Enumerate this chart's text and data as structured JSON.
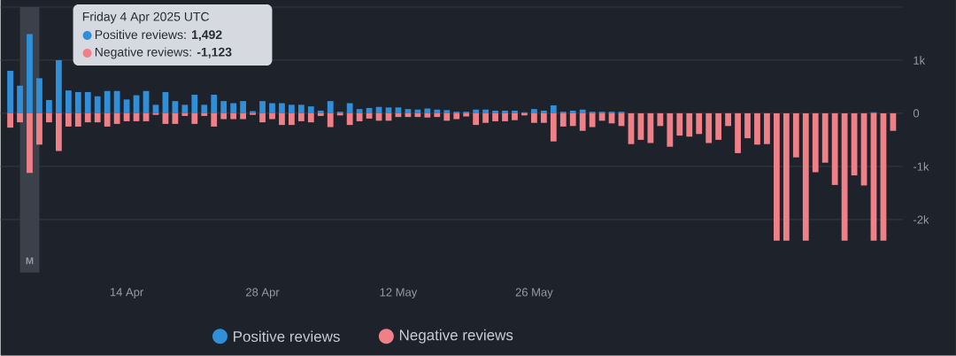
{
  "chart_data": {
    "type": "bar",
    "x": [
      "2025-04-02",
      "2025-04-03",
      "2025-04-04",
      "2025-04-05",
      "2025-04-06",
      "2025-04-07",
      "2025-04-08",
      "2025-04-09",
      "2025-04-10",
      "2025-04-11",
      "2025-04-12",
      "2025-04-13",
      "2025-04-14",
      "2025-04-15",
      "2025-04-16",
      "2025-04-17",
      "2025-04-18",
      "2025-04-19",
      "2025-04-20",
      "2025-04-21",
      "2025-04-22",
      "2025-04-23",
      "2025-04-24",
      "2025-04-25",
      "2025-04-26",
      "2025-04-27",
      "2025-04-28",
      "2025-04-29",
      "2025-04-30",
      "2025-05-01",
      "2025-05-02",
      "2025-05-03",
      "2025-05-04",
      "2025-05-05",
      "2025-05-06",
      "2025-05-07",
      "2025-05-08",
      "2025-05-09",
      "2025-05-10",
      "2025-05-11",
      "2025-05-12",
      "2025-05-13",
      "2025-05-14",
      "2025-05-15",
      "2025-05-16",
      "2025-05-17",
      "2025-05-18",
      "2025-05-19",
      "2025-05-20",
      "2025-05-21",
      "2025-05-22",
      "2025-05-23",
      "2025-05-24",
      "2025-05-25",
      "2025-05-26",
      "2025-05-27",
      "2025-05-28",
      "2025-05-29",
      "2025-05-30",
      "2025-05-31",
      "2025-06-01",
      "2025-06-02",
      "2025-06-03",
      "2025-06-04",
      "2025-06-05",
      "2025-06-06",
      "2025-06-07",
      "2025-06-08",
      "2025-06-09",
      "2025-06-10",
      "2025-06-11",
      "2025-06-12",
      "2025-06-13",
      "2025-06-14",
      "2025-06-15",
      "2025-06-16",
      "2025-06-17",
      "2025-06-18",
      "2025-06-19",
      "2025-06-20",
      "2025-06-21",
      "2025-06-22",
      "2025-06-23",
      "2025-06-24",
      "2025-06-25",
      "2025-06-26",
      "2025-06-27",
      "2025-06-28",
      "2025-06-29",
      "2025-06-30",
      "2025-07-01",
      "2025-07-02"
    ],
    "series": [
      {
        "name": "Positive reviews",
        "color": "#2f8fd8",
        "values": [
          800,
          520,
          1492,
          660,
          250,
          1000,
          430,
          400,
          400,
          320,
          420,
          420,
          260,
          340,
          420,
          160,
          400,
          230,
          160,
          350,
          160,
          350,
          230,
          190,
          230,
          40,
          230,
          190,
          190,
          160,
          160,
          130,
          50,
          230,
          30,
          190,
          80,
          100,
          120,
          110,
          110,
          80,
          70,
          90,
          70,
          60,
          30,
          30,
          70,
          70,
          50,
          50,
          50,
          20,
          80,
          50,
          150,
          30,
          50,
          70,
          30,
          30,
          30,
          30,
          0,
          0,
          0,
          0,
          0,
          0,
          0,
          0,
          0,
          0,
          0,
          0,
          0,
          0,
          0,
          0,
          0,
          0,
          0,
          0,
          0,
          0,
          0,
          0,
          0,
          20,
          0,
          0
        ]
      },
      {
        "name": "Negative reviews",
        "color": "#f08088",
        "values": [
          -270,
          -170,
          -1123,
          -590,
          -170,
          -710,
          -250,
          -250,
          -170,
          -170,
          -250,
          -200,
          -150,
          -150,
          -150,
          -30,
          -200,
          -200,
          -50,
          -200,
          -50,
          -250,
          -110,
          -110,
          -110,
          -30,
          -170,
          -110,
          -220,
          -220,
          -150,
          -170,
          -50,
          -260,
          -40,
          -220,
          -150,
          -100,
          -140,
          -140,
          -70,
          -70,
          -70,
          -80,
          -70,
          -140,
          -110,
          -60,
          -220,
          -180,
          -150,
          -150,
          -130,
          -40,
          -180,
          -180,
          -530,
          -250,
          -240,
          -330,
          -260,
          -140,
          -190,
          -240,
          -580,
          -500,
          -560,
          -240,
          -630,
          -420,
          -440,
          -390,
          -560,
          -500,
          -240,
          -750,
          -470,
          -590,
          -580,
          -2400,
          -2400,
          -830,
          -2400,
          -1110,
          -930,
          -1350,
          -2400,
          -1170,
          -1360,
          -2400,
          -2400,
          -330
        ]
      }
    ],
    "xlim": [
      "2025-04-01",
      "2025-07-03"
    ],
    "xticks": [
      {
        "value": "2025-04-14",
        "label": "14 Apr"
      },
      {
        "value": "2025-04-28",
        "label": "28 Apr"
      },
      {
        "value": "2025-05-12",
        "label": "12 May"
      },
      {
        "value": "2025-05-26",
        "label": "26 May"
      }
    ],
    "ylim": [
      -3000,
      2000
    ],
    "yticks": [
      {
        "value": 2000,
        "label": null
      },
      {
        "value": 1000,
        "label": "1k"
      },
      {
        "value": 0,
        "label": "0"
      },
      {
        "value": -1000,
        "label": "-1k"
      },
      {
        "value": -2000,
        "label": "-2k"
      }
    ],
    "grid": "y",
    "stacked": true,
    "legend": "bottom",
    "bands": [
      {
        "axis": "x",
        "from": "2025-04-03",
        "to": "2025-04-05",
        "label": "M",
        "color": "#3a414b"
      }
    ],
    "annotations": [
      "Friday 4 Apr 2025 UTC",
      "Positive reviews: **1,492**",
      "Negative reviews: **-1,123**"
    ]
  }
}
